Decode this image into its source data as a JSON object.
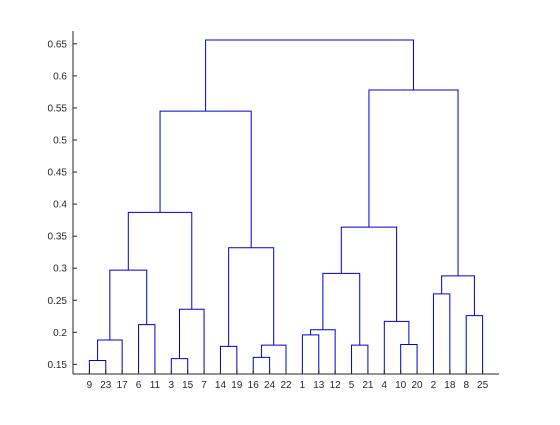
{
  "chart_data": {
    "type": "dendrogram",
    "ylim": [
      0.135,
      0.67
    ],
    "yticks": [
      0.15,
      0.2,
      0.25,
      0.3,
      0.35,
      0.4,
      0.45,
      0.5,
      0.55,
      0.6,
      0.65
    ],
    "ytick_labels": [
      "0.15",
      "0.2",
      "0.25",
      "0.3",
      "0.35",
      "0.4",
      "0.45",
      "0.5",
      "0.55",
      "0.6",
      "0.65"
    ],
    "leaf_order": [
      "9",
      "23",
      "17",
      "6",
      "11",
      "3",
      "15",
      "7",
      "14",
      "19",
      "16",
      "24",
      "22",
      "1",
      "13",
      "12",
      "5",
      "21",
      "4",
      "10",
      "20",
      "2",
      "18",
      "8",
      "25"
    ],
    "line_color": "#0000cc",
    "merges": [
      {
        "left": "9",
        "right": "23",
        "height": 0.156
      },
      {
        "left": "9+23",
        "right": "17",
        "height": 0.188
      },
      {
        "left": "6",
        "right": "11",
        "height": 0.212
      },
      {
        "left": "9+23+17",
        "right": "6+11",
        "height": 0.297
      },
      {
        "left": "3",
        "right": "15",
        "height": 0.159
      },
      {
        "left": "3+15",
        "right": "7",
        "height": 0.236
      },
      {
        "left": "9+23+17+6+11",
        "right": "3+15+7",
        "height": 0.387
      },
      {
        "left": "14",
        "right": "19",
        "height": 0.178
      },
      {
        "left": "16",
        "right": "24",
        "height": 0.161
      },
      {
        "left": "16+24",
        "right": "22",
        "height": 0.18
      },
      {
        "left": "14+19",
        "right": "16+24+22",
        "height": 0.332
      },
      {
        "left": "9+23+17+6+11+3+15+7",
        "right": "14+19+16+24+22",
        "height": 0.545
      },
      {
        "left": "1",
        "right": "13",
        "height": 0.196
      },
      {
        "left": "1+13",
        "right": "12",
        "height": 0.204
      },
      {
        "left": "5",
        "right": "21",
        "height": 0.18
      },
      {
        "left": "1+13+12",
        "right": "5+21",
        "height": 0.292
      },
      {
        "left": "10",
        "right": "20",
        "height": 0.181
      },
      {
        "left": "4",
        "right": "10+20",
        "height": 0.217
      },
      {
        "left": "1+13+12+5+21",
        "right": "4+10+20",
        "height": 0.364
      },
      {
        "left": "2",
        "right": "18",
        "height": 0.26
      },
      {
        "left": "8",
        "right": "25",
        "height": 0.226
      },
      {
        "left": "2+18",
        "right": "8+25",
        "height": 0.288
      },
      {
        "left": "1+13+12+5+21+4+10+20",
        "right": "2+18+8+25",
        "height": 0.578
      },
      {
        "left": "9+23+17+6+11+3+15+7+14+19+16+24+22",
        "right": "1+13+12+5+21+4+10+20+2+18+8+25",
        "height": 0.656
      }
    ]
  }
}
